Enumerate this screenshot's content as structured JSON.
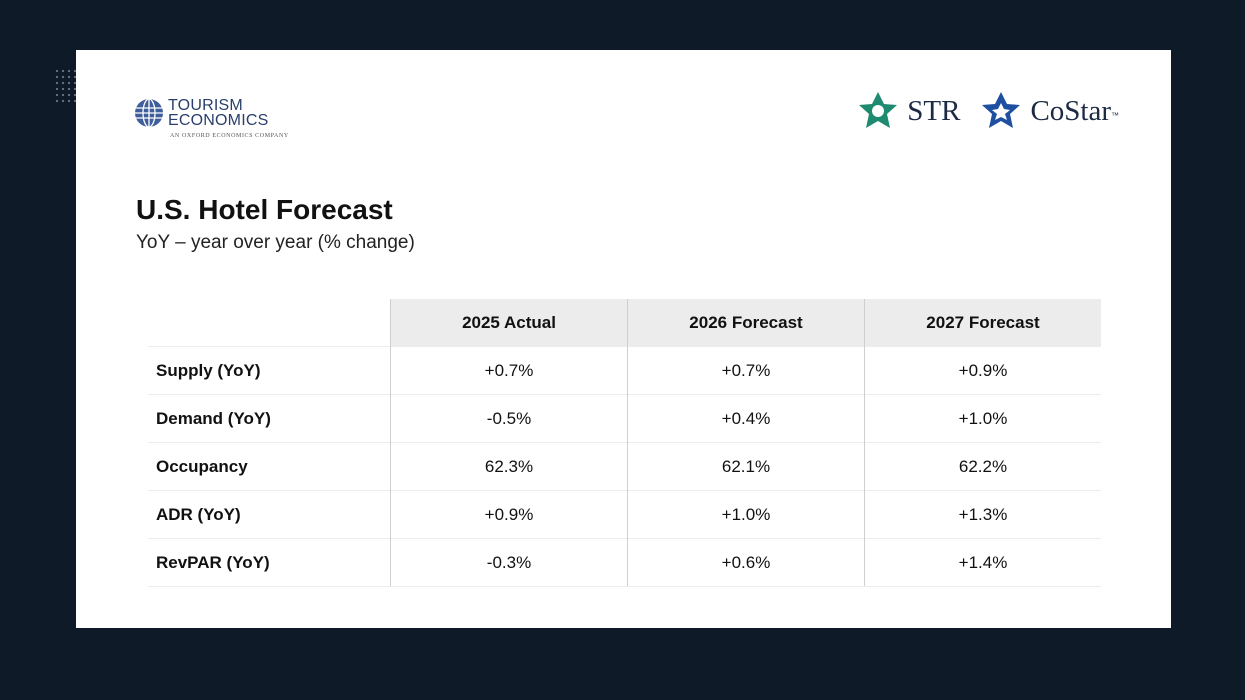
{
  "header": {
    "logo_left": {
      "line1": "TOURISM",
      "line2": "ECONOMICS",
      "tagline": "AN OXFORD ECONOMICS COMPANY"
    },
    "logo_right": {
      "str": "STR",
      "costar": "CoStar",
      "trademark": "™"
    }
  },
  "title": "U.S. Hotel Forecast",
  "subtitle": "YoY – year over year (% change)",
  "table": {
    "columns": [
      "2025 Actual",
      "2026 Forecast",
      "2027 Forecast"
    ],
    "rows": [
      [
        "Supply (YoY)",
        "+0.7%",
        "+0.7%",
        "+0.9%"
      ],
      [
        "Demand (YoY)",
        "-0.5%",
        "+0.4%",
        "+1.0%"
      ],
      [
        "Occupancy",
        "62.3%",
        "62.1%",
        "62.2%"
      ],
      [
        "ADR (YoY)",
        "+0.9%",
        "+1.0%",
        "+1.3%"
      ],
      [
        "RevPAR (YoY)",
        "-0.3%",
        "+0.6%",
        "+1.4%"
      ]
    ]
  }
}
